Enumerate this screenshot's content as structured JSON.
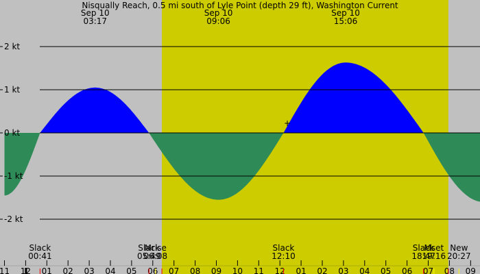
{
  "colors": {
    "night_bg": "#c0c0c0",
    "day_bg": "#cccc00",
    "flood": "#0000ff",
    "ebb": "#2e8b57",
    "grid": "#000000",
    "sun_tick": "#ff0000",
    "moon_tick": "#ffff00"
  },
  "chart_data": {
    "type": "area",
    "title": "Nisqually Reach, 0.5 mi south of Lyle Point (depth 29 ft), Washington Current",
    "x_unit": "hours since Sep 10 00:00",
    "ylabel": "",
    "xlabel": "",
    "xlim": [
      -1.0,
      21.6
    ],
    "ylim": [
      -2.45,
      3.0
    ],
    "grid": "horizontal lines at labelled ticks",
    "y_ticks": [
      {
        "value": 2,
        "label": "2 kt"
      },
      {
        "value": 1,
        "label": "1 kt"
      },
      {
        "value": 0,
        "label": "0 kt"
      },
      {
        "value": -1,
        "label": "-1 kt"
      },
      {
        "value": -2,
        "label": "-2 kt"
      }
    ],
    "x_ticks": [
      {
        "value": -1,
        "label": "11"
      },
      {
        "value": 0,
        "label": "12"
      },
      {
        "value": 1,
        "label": "01"
      },
      {
        "value": 2,
        "label": "02"
      },
      {
        "value": 3,
        "label": "03"
      },
      {
        "value": 4,
        "label": "04"
      },
      {
        "value": 5,
        "label": "05"
      },
      {
        "value": 6,
        "label": "06"
      },
      {
        "value": 7,
        "label": "07"
      },
      {
        "value": 8,
        "label": "08"
      },
      {
        "value": 9,
        "label": "09"
      },
      {
        "value": 10,
        "label": "10"
      },
      {
        "value": 11,
        "label": "11"
      },
      {
        "value": 12,
        "label": "12"
      },
      {
        "value": 13,
        "label": "01"
      },
      {
        "value": 14,
        "label": "02"
      },
      {
        "value": 15,
        "label": "03"
      },
      {
        "value": 16,
        "label": "04"
      },
      {
        "value": 17,
        "label": "05"
      },
      {
        "value": 18,
        "label": "06"
      },
      {
        "value": 19,
        "label": "07"
      },
      {
        "value": 20,
        "label": "08"
      },
      {
        "value": 21,
        "label": "09"
      }
    ],
    "daylight": [
      6.43,
      19.95
    ],
    "extremes_top": [
      {
        "x": 3.28,
        "date": "Sep 10",
        "time": "03:17"
      },
      {
        "x": 9.1,
        "date": "Sep 10",
        "time": "09:06"
      },
      {
        "x": 15.1,
        "date": "Sep 10",
        "time": "15:06"
      }
    ],
    "events_bottom": [
      {
        "x": 0.68,
        "label": "Slack",
        "time": "00:41"
      },
      {
        "x": 5.82,
        "label": "Slack",
        "time": "05:49"
      },
      {
        "x": 6.13,
        "label": "Mrise",
        "time": "06:08"
      },
      {
        "x": 12.17,
        "label": "Slack",
        "time": "12:10"
      },
      {
        "x": 18.78,
        "label": "Slack",
        "time": "18:47"
      },
      {
        "x": 19.27,
        "label": "Mset",
        "time": "19:16"
      },
      {
        "x": 20.45,
        "label": "New",
        "time": "20:27"
      }
    ],
    "series": [
      {
        "x": [
          -1.0,
          0.68,
          3.28,
          5.82,
          9.1,
          12.17,
          15.1,
          18.78,
          21.6
        ],
        "y": [
          -1.45,
          0.0,
          1.05,
          0.0,
          -1.55,
          0.0,
          1.63,
          0.0,
          -1.6
        ]
      }
    ]
  }
}
